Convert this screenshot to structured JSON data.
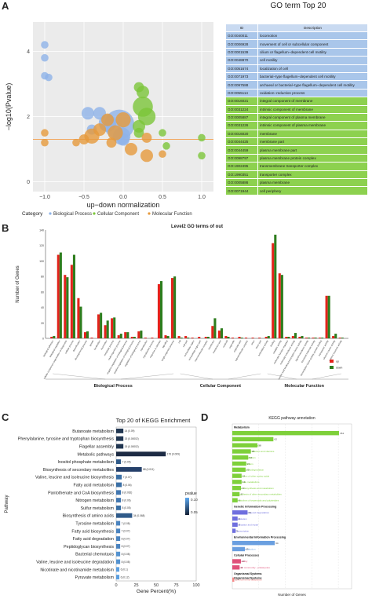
{
  "panels": {
    "a": "A",
    "b": "B",
    "c": "C",
    "d": "D"
  },
  "go_table": {
    "title": "GO term Top 20",
    "header": {
      "id": "ID",
      "desc": "Description"
    },
    "rows": [
      {
        "id": "GO:0040011",
        "desc": "locomotion",
        "cat": "bp"
      },
      {
        "id": "GO:0006928",
        "desc": "movement of cell or subcellular component",
        "cat": "bp"
      },
      {
        "id": "GO:0001539",
        "desc": "cilium or flagellum−dependent cell motility",
        "cat": "bp"
      },
      {
        "id": "GO:0048870",
        "desc": "cell motility",
        "cat": "bp"
      },
      {
        "id": "GO:0051674",
        "desc": "localization of cell",
        "cat": "bp"
      },
      {
        "id": "GO:0071973",
        "desc": "bacterial−type flagellum−dependent cell motility",
        "cat": "bp"
      },
      {
        "id": "GO:0097588",
        "desc": "archaeal or bacterial−type flagellum−dependent cell motility",
        "cat": "bp"
      },
      {
        "id": "GO:0055114",
        "desc": "oxidation−reduction process",
        "cat": "bp"
      },
      {
        "id": "GO:0016021",
        "desc": "integral component of membrane",
        "cat": "cc"
      },
      {
        "id": "GO:0031224",
        "desc": "intrinsic component of membrane",
        "cat": "cc"
      },
      {
        "id": "GO:0005887",
        "desc": "integral component of plasma membrane",
        "cat": "cc"
      },
      {
        "id": "GO:0031226",
        "desc": "intrinsic component of plasma membrane",
        "cat": "cc"
      },
      {
        "id": "GO:0016020",
        "desc": "membrane",
        "cat": "cc"
      },
      {
        "id": "GO:0044425",
        "desc": "membrane part",
        "cat": "cc"
      },
      {
        "id": "GO:0044459",
        "desc": "plasma membrane part",
        "cat": "cc"
      },
      {
        "id": "GO:0098797",
        "desc": "plasma membrane protein complex",
        "cat": "cc"
      },
      {
        "id": "GO:1902495",
        "desc": "transmembrane transporter complex",
        "cat": "cc"
      },
      {
        "id": "GO:1990351",
        "desc": "transporter complex",
        "cat": "cc"
      },
      {
        "id": "GO:0005886",
        "desc": "plasma membrane",
        "cat": "cc"
      },
      {
        "id": "GO:0071944",
        "desc": "cell periphery",
        "cat": "cc"
      }
    ]
  },
  "chart_data": [
    {
      "type": "scatter",
      "xlabel": "up−down normalization",
      "ylabel": "−log10(Pvalue)",
      "xticks": [
        "−1.0",
        "−0.5",
        "0.0",
        "0.5",
        "1.0"
      ],
      "yticks": [
        "0",
        "2",
        "4"
      ],
      "xlim": [
        -1.15,
        1.15
      ],
      "ylim": [
        -0.3,
        4.9
      ],
      "threshold": 1.3,
      "legend": {
        "title": "Category",
        "items": [
          "Biological Process",
          "Cellular Component",
          "Molecular Function"
        ]
      },
      "colors": {
        "Biological Process": "#8fb3e8",
        "Cellular Component": "#7cc63a",
        "Molecular Function": "#e69a3c"
      },
      "series": [
        {
          "name": "Biological Process",
          "points": [
            [
              -1.0,
              4.2,
              3
            ],
            [
              -1.0,
              3.8,
              3
            ],
            [
              -1.0,
              3.25,
              3
            ],
            [
              -0.95,
              3.2,
              3
            ],
            [
              -0.3,
              2.1,
              5
            ],
            [
              -0.2,
              1.8,
              7
            ],
            [
              -0.05,
              1.75,
              12
            ],
            [
              -0.02,
              1.4,
              7
            ],
            [
              -0.45,
              2.1,
              5
            ],
            [
              -0.4,
              1.6,
              4
            ],
            [
              0.0,
              1.3,
              5
            ]
          ]
        },
        {
          "name": "Cellular Component",
          "points": [
            [
              0.2,
              2.9,
              4
            ],
            [
              0.25,
              2.75,
              5
            ],
            [
              0.25,
              2.3,
              8
            ],
            [
              0.3,
              2.0,
              7
            ],
            [
              0.2,
              1.7,
              5
            ],
            [
              0.2,
              1.5,
              4
            ],
            [
              0.5,
              1.5,
              3
            ],
            [
              0.55,
              1.1,
              3
            ],
            [
              1.0,
              1.35,
              3
            ],
            [
              1.0,
              0.8,
              3
            ]
          ]
        },
        {
          "name": "Molecular Function",
          "points": [
            [
              -1.0,
              1.5,
              3
            ],
            [
              -1.0,
              1.2,
              3
            ],
            [
              -0.4,
              1.4,
              6
            ],
            [
              -0.3,
              1.6,
              5
            ],
            [
              -0.2,
              1.9,
              5
            ],
            [
              -0.15,
              1.2,
              4
            ],
            [
              -0.1,
              1.5,
              6
            ],
            [
              0.0,
              1.9,
              6
            ],
            [
              -0.5,
              1.3,
              4
            ],
            [
              0.1,
              1.0,
              5
            ],
            [
              0.3,
              1.35,
              4
            ],
            [
              0.3,
              0.8,
              5
            ],
            [
              -0.6,
              1.2,
              3
            ],
            [
              0.5,
              0.85,
              3
            ]
          ]
        }
      ]
    },
    {
      "type": "bar",
      "title": "Level2 GO terms of out",
      "ylabel": "Number of Genes",
      "yticks": [
        "0",
        "20",
        "40",
        "60",
        "80",
        "100",
        "120",
        "140"
      ],
      "ylim": [
        0,
        140
      ],
      "groups": [
        "Biological Process",
        "Cellular Component",
        "Molecular Function"
      ],
      "categories": [
        "biological adhesion",
        "biological regulation",
        "cellular component organization or biogenesis",
        "cellular process",
        "detoxification",
        "developmental process",
        "growth",
        "localization",
        "locomotion",
        "metabolic process",
        "multi-organism process",
        "negative regulation of biological process",
        "positive regulation of biological process",
        "regulation of biological process",
        "reproduction",
        "reproductive process",
        "response to stimulus",
        "signaling",
        "single-organism process",
        "cell",
        "cell part",
        "extracellular region",
        "extracellular region part",
        "macromolecular complex",
        "membrane",
        "membrane part",
        "nucleoid",
        "organelle",
        "organelle part",
        "supramolecular complex",
        "virion",
        "virion part",
        "antioxidant activity",
        "binding",
        "catalytic activity",
        "molecular function regulator",
        "molecular transducer activity",
        "nucleic acid binding transcription factor activity",
        "signal transducer activity",
        "structural molecule activity",
        "transcription factor activity, protein binding",
        "transporter activity",
        "electron carrier activity",
        "nutrient reservoir activity"
      ],
      "category_groups": [
        0,
        0,
        0,
        0,
        0,
        0,
        0,
        0,
        0,
        0,
        0,
        0,
        0,
        0,
        0,
        0,
        0,
        0,
        0,
        1,
        1,
        1,
        1,
        1,
        1,
        1,
        1,
        1,
        1,
        1,
        1,
        1,
        2,
        2,
        2,
        2,
        2,
        2,
        2,
        2,
        2,
        2,
        2,
        2
      ],
      "series": [
        {
          "name": "up",
          "color": "#e3231b",
          "values": [
            2,
            108,
            82,
            95,
            52,
            8,
            1,
            31,
            17,
            26,
            4,
            8,
            2,
            9,
            1,
            1,
            70,
            4,
            78,
            3,
            3,
            1,
            2,
            2,
            16,
            10,
            3,
            1,
            2,
            1,
            1,
            1,
            2,
            123,
            84,
            2,
            3,
            2,
            1,
            1,
            1,
            55,
            3,
            1
          ]
        },
        {
          "name": "down",
          "color": "#2e7d1e",
          "values": [
            3,
            111,
            79,
            108,
            41,
            9,
            0,
            33,
            23,
            27,
            6,
            8,
            2,
            10,
            0,
            0,
            74,
            3,
            80,
            1,
            1,
            0,
            0,
            2,
            26,
            13,
            2,
            0,
            1,
            0,
            0,
            0,
            3,
            134,
            82,
            2,
            7,
            3,
            1,
            1,
            1,
            55,
            6,
            1
          ]
        }
      ]
    },
    {
      "type": "bar",
      "title": "Top 20 of KEGG Enrichment",
      "xlabel": "Gene Percent(%)",
      "ylabel": "Pathway",
      "xticks": [
        "0",
        "25",
        "50",
        "75",
        "100"
      ],
      "xlim": [
        0,
        100
      ],
      "legend_title": "pvalue",
      "legend_ticks": [
        "0.10",
        "0.05"
      ],
      "categories": [
        "Butanoate metabolism",
        "Phenylalanine, tyrosine and tryptophan biosynthesis",
        "Flagellar assembly",
        "Metabolic pathways",
        "Inositol phosphate metabolism",
        "Biosynthesis of secondary metabolites",
        "Valine, leucine and isoleucine biosynthesis",
        "Fatty acid metabolism",
        "Pantothenate and CoA biosynthesis",
        "Nitrogen metabolism",
        "Sulfur metabolism",
        "Biosynthesis of amino acids",
        "Tyrosine metabolism",
        "Fatty acid biosynthesis",
        "Fatty acid degradation",
        "Peptidoglycan biosynthesis",
        "Bacterial chemotaxis",
        "Valine, leucine and isoleucine degradation",
        "Nicotinate and nicotinamide metabolism",
        "Pyruvate metabolism"
      ],
      "values": [
        9,
        9,
        9,
        62,
        6,
        32,
        7,
        7,
        6,
        6,
        6,
        20,
        5,
        5,
        5,
        5,
        5,
        5,
        4,
        4
      ],
      "bar_labels": [
        "14 (0.09)",
        "15 (0.00002)",
        "15 (0.00002)",
        "176 (0.009)",
        "7 (0.05)",
        "88 (0.011)",
        "7 (0.07)",
        "8 (0.06)",
        "8 (0.062)",
        "8 (0.06)",
        "8 (0.05)",
        "34 (0.068)",
        "7 (0.08)",
        "7 (0.07)",
        "8 (0.07)",
        "8 (0.07)",
        "8 (0.08)",
        "8 (0.08)",
        "6 (0.1)",
        "6 (0.12)"
      ],
      "colors": [
        "#213651",
        "#213651",
        "#213651",
        "#1d2b44",
        "#2f5a89",
        "#25406a",
        "#3a6fa5",
        "#3a6fa5",
        "#4277b0",
        "#4277b0",
        "#3a6fa5",
        "#2f5a89",
        "#4b84c0",
        "#4b84c0",
        "#4b84c0",
        "#4b84c0",
        "#5593d0",
        "#5593d0",
        "#5b9fe0",
        "#5b9fe0"
      ]
    },
    {
      "type": "bar",
      "title": "KEGG pathway annotation",
      "xlabel": "Number of Genes",
      "xlim": [
        0,
        180
      ],
      "groups": [
        "Metabolism",
        "Genetic Information Processing",
        "Environmental Information Processing",
        "Cellular Processes",
        "Organismal Systems"
      ],
      "categories": [
        "Global and overview maps",
        "Carbohydrate metabolism",
        "Amino acid metabolism",
        "Metabolism of cofactors and vitamins",
        "Energy metabolism",
        "Lipid metabolism",
        "Xenobiotics biodegradation",
        "Metabolism of other amino acids",
        "Nucleotide metabolism",
        "Glycan biosynthesis and metabolism",
        "Biosynthesis of other secondary metabolites",
        "Metabolism of terpenoids and polyketides",
        "Folding, sorting and degradation",
        "Translation",
        "Replication and repair",
        "Transcription",
        "Membrane transport",
        "Signal transduction",
        "Cell motility",
        "Cellular community - prokaryotes",
        "Environmental adaptation"
      ],
      "category_groups": [
        0,
        0,
        0,
        0,
        0,
        0,
        0,
        0,
        0,
        0,
        0,
        0,
        1,
        1,
        1,
        1,
        2,
        2,
        3,
        3,
        4
      ],
      "values": [
        161,
        62,
        38,
        28,
        24,
        21,
        20,
        14,
        14,
        13,
        11,
        8,
        23,
        8,
        8,
        5,
        64,
        19,
        13,
        11,
        3
      ],
      "bar_labels": [
        "161",
        "62",
        "38",
        "28",
        "24",
        "21",
        "20",
        "14",
        "14",
        "13",
        "11",
        "8",
        "23",
        "8",
        "8",
        "5",
        "64",
        "19",
        "13",
        "11",
        "3"
      ],
      "group_colors": [
        "#7ed03a",
        "#6f6fde",
        "#6a9fe0",
        "#e0507a",
        "#f58a8a"
      ]
    }
  ]
}
